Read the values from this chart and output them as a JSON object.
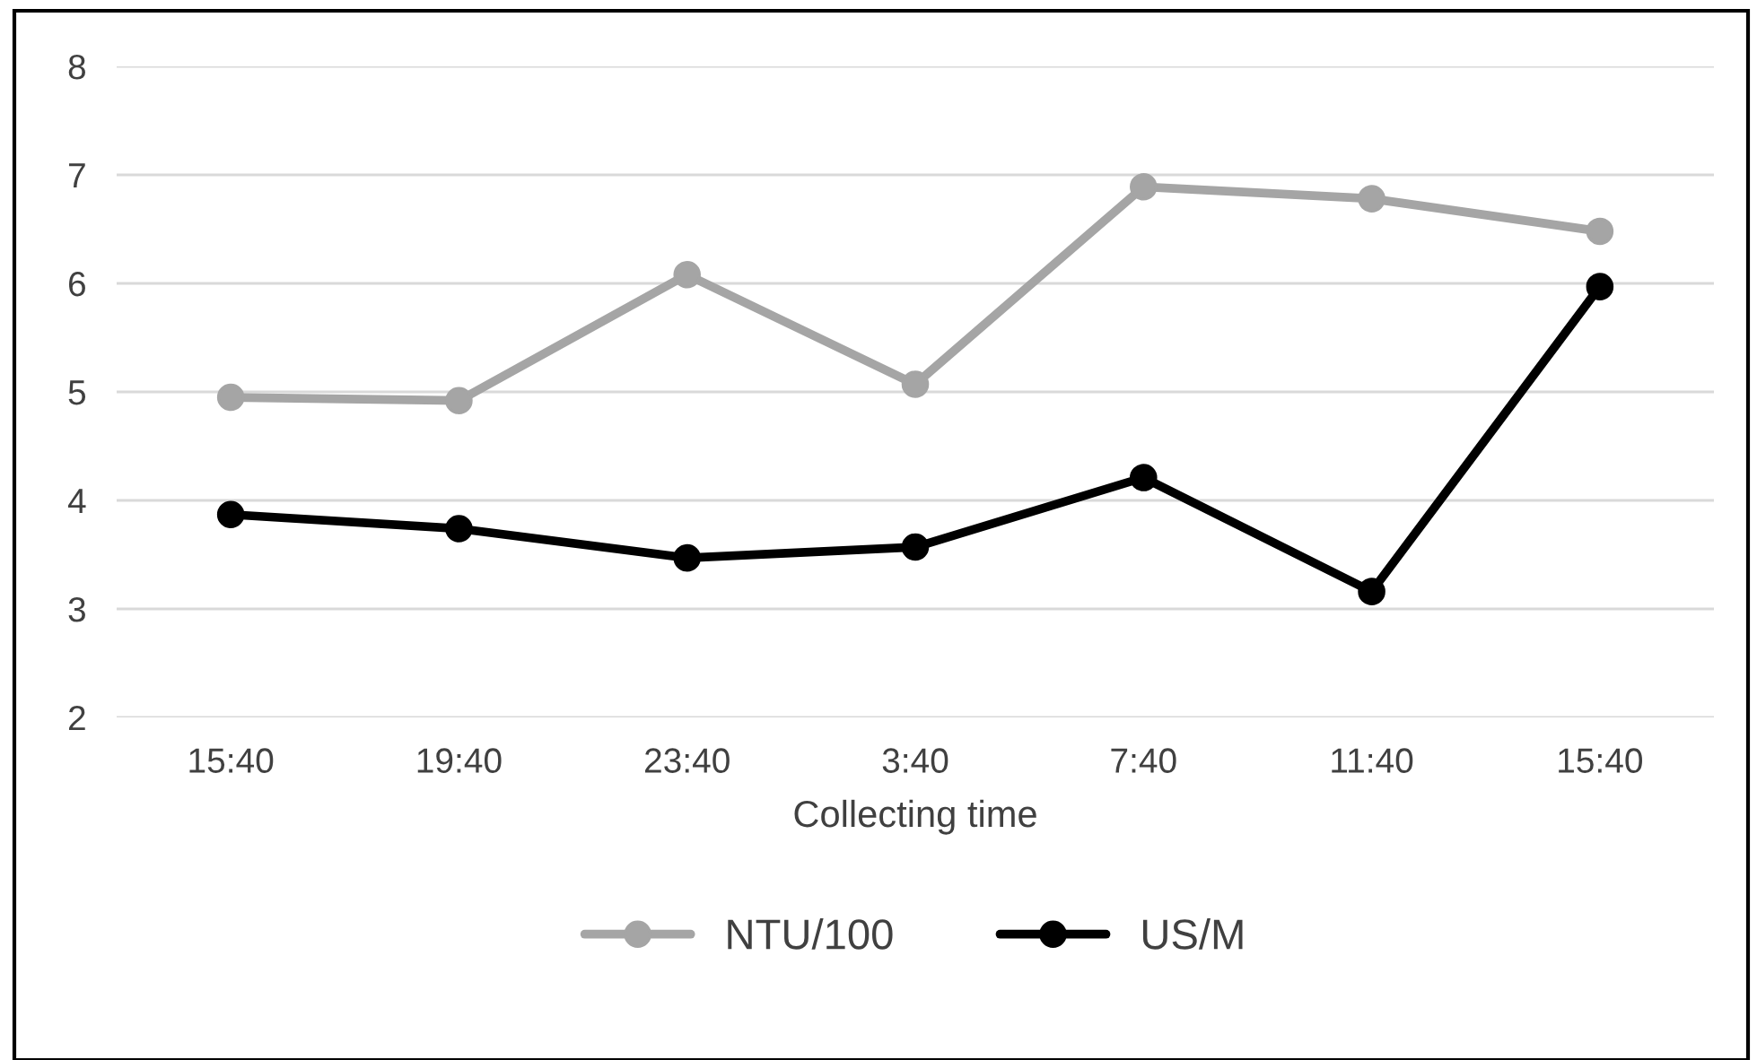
{
  "chart_data": {
    "type": "line",
    "xlabel": "Collecting time",
    "categories": [
      "15:40",
      "19:40",
      "23:40",
      "3:40",
      "7:40",
      "11:40",
      "15:40"
    ],
    "series": [
      {
        "name": "NTU/100",
        "color": "#a5a5a5",
        "values": [
          4.95,
          4.92,
          6.08,
          5.07,
          6.89,
          6.78,
          6.48
        ]
      },
      {
        "name": "US/M",
        "color": "#000000",
        "values": [
          3.87,
          3.74,
          3.47,
          3.57,
          4.21,
          3.16,
          5.97
        ]
      }
    ],
    "ylim": [
      2,
      8
    ],
    "yticks": [
      2,
      3,
      4,
      5,
      6,
      7,
      8
    ],
    "grid": "y",
    "legend": "bottom",
    "marker": "circle",
    "line_style": "solid"
  }
}
